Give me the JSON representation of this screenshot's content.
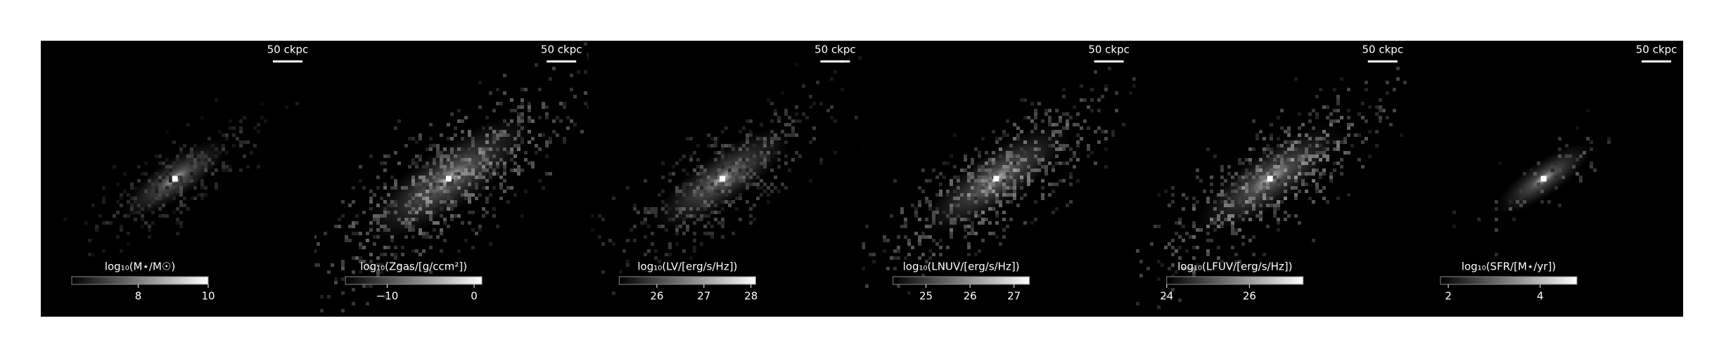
{
  "chart_data": [
    {
      "type": "image",
      "annotation": "50 ckpc",
      "colorbar_label": "log₁₀(M⋆/M☉)",
      "clim": [
        6.1,
        10
      ],
      "cticks": [
        8,
        10
      ]
    },
    {
      "type": "image",
      "annotation": "50 ckpc",
      "colorbar_label": "log₁₀(Zgas/[g/ccm²])",
      "clim": [
        -14.8,
        0.9
      ],
      "cticks": [
        {
          "value": -10,
          "label": "−10"
        },
        0
      ]
    },
    {
      "type": "image",
      "annotation": "50 ckpc",
      "colorbar_label": "log₁₀(LV/[erg/s/Hz])",
      "clim": [
        25.2,
        28.1
      ],
      "cticks": [
        26,
        27,
        28
      ]
    },
    {
      "type": "image",
      "annotation": "50 ckpc",
      "colorbar_label": "log₁₀(LNUV/[erg/s/Hz])",
      "clim": [
        24.25,
        27.35
      ],
      "cticks": [
        25,
        26,
        27
      ]
    },
    {
      "type": "image",
      "annotation": "50 ckpc",
      "colorbar_label": "log₁₀(LFUV/[erg/s/Hz])",
      "clim": [
        24.0,
        27.3
      ],
      "cticks": [
        24,
        26
      ]
    },
    {
      "type": "image",
      "annotation": "50 ckpc",
      "colorbar_label": "log₁₀(SFR/[M⋆/yr])",
      "clim": [
        1.83,
        4.8
      ],
      "cticks": [
        2,
        4
      ]
    }
  ]
}
